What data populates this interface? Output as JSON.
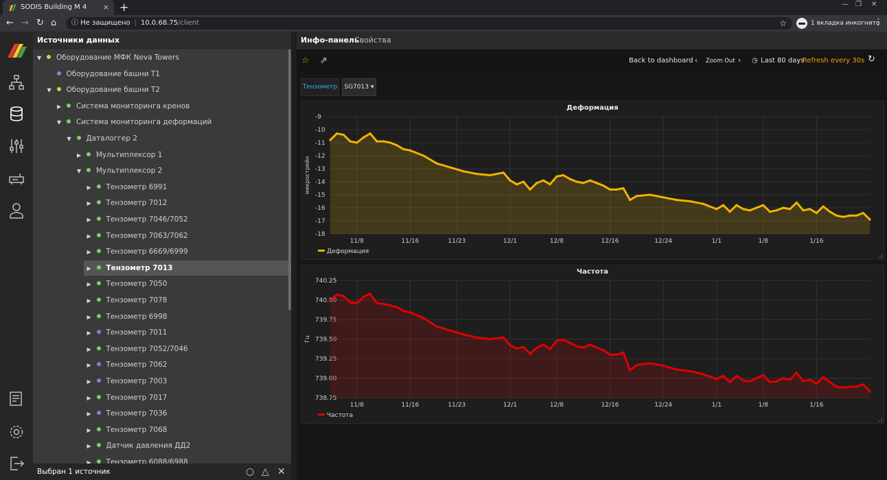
{
  "browser": {
    "tab_title": "SODIS Building M 4",
    "tab_close": "×",
    "new_tab": "+",
    "security_label": "Не защищено",
    "url_host": "10.0.68.75",
    "url_path": "/client",
    "incognito_label": "1 вкладка инкогнито"
  },
  "sources": {
    "header": "Источники данных",
    "footer": "Выбран 1 источник",
    "tree": [
      {
        "label": "Оборудование МФК Neva Towers",
        "depth": 0,
        "arrow": "▼",
        "dot": "#d6cf3a",
        "selected": false
      },
      {
        "label": "Оборудование башни T1",
        "depth": 1,
        "arrow": "",
        "dot": "#8c7fd8",
        "selected": false
      },
      {
        "label": "Оборудование башни T2",
        "depth": 1,
        "arrow": "▼",
        "dot": "#d6cf3a",
        "selected": false
      },
      {
        "label": "Система мониторинга кренов",
        "depth": 2,
        "arrow": "▶",
        "dot": "#7ccf6a",
        "selected": false
      },
      {
        "label": "Система мониторинга деформаций",
        "depth": 2,
        "arrow": "▼",
        "dot": "#7ccf6a",
        "selected": false
      },
      {
        "label": "Даталоггер 2",
        "depth": 3,
        "arrow": "▼",
        "dot": "#7ccf6a",
        "selected": false
      },
      {
        "label": "Мультиплексор 1",
        "depth": 4,
        "arrow": "▶",
        "dot": "#7ccf6a",
        "selected": false
      },
      {
        "label": "Мультиплексор 2",
        "depth": 4,
        "arrow": "▼",
        "dot": "#7ccf6a",
        "selected": false
      },
      {
        "label": "Тензометр 6991",
        "depth": 5,
        "arrow": "▶",
        "dot": "#7ccf6a",
        "selected": false
      },
      {
        "label": "Тензометр 7012",
        "depth": 5,
        "arrow": "▶",
        "dot": "#7ccf6a",
        "selected": false
      },
      {
        "label": "Тензометр 7046/7052",
        "depth": 5,
        "arrow": "▶",
        "dot": "#7ccf6a",
        "selected": false
      },
      {
        "label": "Тензометр 7063/7062",
        "depth": 5,
        "arrow": "▶",
        "dot": "#7ccf6a",
        "selected": false
      },
      {
        "label": "Тензометр 6669/6999",
        "depth": 5,
        "arrow": "▶",
        "dot": "#7ccf6a",
        "selected": false
      },
      {
        "label": "Тензометр 7013",
        "depth": 5,
        "arrow": "▶",
        "dot": "#7ccf6a",
        "selected": true
      },
      {
        "label": "Тензометр 7050",
        "depth": 5,
        "arrow": "▶",
        "dot": "#7ccf6a",
        "selected": false
      },
      {
        "label": "Тензометр 7078",
        "depth": 5,
        "arrow": "▶",
        "dot": "#7ccf6a",
        "selected": false
      },
      {
        "label": "Тензометр 6998",
        "depth": 5,
        "arrow": "▶",
        "dot": "#7ccf6a",
        "selected": false
      },
      {
        "label": "Тензометр 7011",
        "depth": 5,
        "arrow": "▶",
        "dot": "#8c7fd8",
        "selected": false
      },
      {
        "label": "Тензометр 7052/7046",
        "depth": 5,
        "arrow": "▶",
        "dot": "#7ccf6a",
        "selected": false
      },
      {
        "label": "Тензометр 7062",
        "depth": 5,
        "arrow": "▶",
        "dot": "#8c7fd8",
        "selected": false
      },
      {
        "label": "Тензометр 7003",
        "depth": 5,
        "arrow": "▶",
        "dot": "#8c7fd8",
        "selected": false
      },
      {
        "label": "Тензометр 7017",
        "depth": 5,
        "arrow": "▶",
        "dot": "#7ccf6a",
        "selected": false
      },
      {
        "label": "Тензометр 7036",
        "depth": 5,
        "arrow": "▶",
        "dot": "#8c7fd8",
        "selected": false
      },
      {
        "label": "Тензометр 7068",
        "depth": 5,
        "arrow": "▶",
        "dot": "#7ccf6a",
        "selected": false
      },
      {
        "label": "Датчик давления ДД2",
        "depth": 5,
        "arrow": "▶",
        "dot": "#7ccf6a",
        "selected": false
      },
      {
        "label": "Тензометр 6088/6988",
        "depth": 5,
        "arrow": "▶",
        "dot": "#7ccf6a",
        "selected": false
      }
    ]
  },
  "main": {
    "tabs": [
      "Инфо-панель",
      "Свойства"
    ],
    "back_label": "Back to dashboard",
    "zoom_label": "Zoom Out",
    "range_label": "Last 80 days",
    "refresh_label": "Refresh every 30s",
    "variable_name": "Тензометр",
    "variable_value": "SG7013 ▾"
  },
  "colors": {
    "deformation": "#f2b200",
    "frequency": "#e00000",
    "accent": "#f0a500"
  },
  "chart_data": [
    {
      "type": "line",
      "title": "Деформация",
      "ylabel": "микрострейн",
      "xlabel": "",
      "ylim": [
        -18,
        -9
      ],
      "yticks": [
        -9,
        -10,
        -11,
        -12,
        -13,
        -14,
        -15,
        -16,
        -17,
        -18
      ],
      "x_ticks": [
        "11/8",
        "11/16",
        "11/23",
        "12/1",
        "12/8",
        "12/16",
        "12/24",
        "1/1",
        "1/8",
        "1/16"
      ],
      "x_tick_days": [
        8,
        16,
        23,
        31,
        38,
        46,
        54,
        62,
        69,
        77
      ],
      "x_range_days": [
        4,
        85
      ],
      "grid": true,
      "legend_position": "bottom-left",
      "series": [
        {
          "name": "Деформация",
          "x_days": [
            4,
            5,
            6,
            7,
            8,
            9,
            10,
            11,
            12,
            13,
            14,
            15,
            16,
            18,
            20,
            22,
            24,
            26,
            28,
            30,
            31,
            32,
            33,
            34,
            35,
            36,
            37,
            38,
            39,
            40,
            41,
            42,
            43,
            44,
            45,
            46,
            47,
            48,
            49,
            50,
            52,
            54,
            56,
            58,
            60,
            62,
            63,
            64,
            65,
            66,
            67,
            68,
            69,
            70,
            71,
            72,
            73,
            74,
            75,
            76,
            77,
            78,
            79,
            80,
            81,
            82,
            83,
            84,
            85
          ],
          "values": [
            -10.8,
            -10.3,
            -10.4,
            -10.9,
            -11.0,
            -10.6,
            -10.3,
            -10.9,
            -10.9,
            -11.0,
            -11.2,
            -11.5,
            -11.6,
            -12.0,
            -12.6,
            -12.9,
            -13.2,
            -13.4,
            -13.5,
            -13.3,
            -13.9,
            -14.2,
            -14.0,
            -14.6,
            -14.1,
            -13.9,
            -14.2,
            -13.6,
            -13.5,
            -13.8,
            -14.0,
            -14.1,
            -13.9,
            -14.1,
            -14.3,
            -14.6,
            -14.6,
            -14.5,
            -15.4,
            -15.1,
            -15.0,
            -15.2,
            -15.4,
            -15.5,
            -15.7,
            -16.1,
            -15.8,
            -16.3,
            -15.8,
            -16.1,
            -16.2,
            -16.0,
            -15.8,
            -16.3,
            -16.2,
            -16.0,
            -16.1,
            -15.6,
            -16.2,
            -16.1,
            -16.4,
            -15.9,
            -16.3,
            -16.6,
            -16.7,
            -16.6,
            -16.6,
            -16.4,
            -16.9
          ]
        }
      ]
    },
    {
      "type": "line",
      "title": "Частота",
      "ylabel": "Гц",
      "xlabel": "",
      "ylim": [
        738.75,
        740.25
      ],
      "yticks": [
        "740.25",
        "740.00",
        "739.75",
        "739.50",
        "739.25",
        "739.00",
        "738.75"
      ],
      "x_ticks": [
        "11/8",
        "11/16",
        "11/23",
        "12/1",
        "12/8",
        "12/16",
        "12/24",
        "1/1",
        "1/8",
        "1/16"
      ],
      "x_tick_days": [
        8,
        16,
        23,
        31,
        38,
        46,
        54,
        62,
        69,
        77
      ],
      "x_range_days": [
        4,
        85
      ],
      "grid": true,
      "legend_position": "bottom-left",
      "series": [
        {
          "name": "Частота",
          "x_days": [
            4,
            5,
            6,
            7,
            8,
            9,
            10,
            11,
            12,
            13,
            14,
            15,
            16,
            18,
            20,
            22,
            24,
            26,
            28,
            30,
            31,
            32,
            33,
            34,
            35,
            36,
            37,
            38,
            39,
            40,
            41,
            42,
            43,
            44,
            45,
            46,
            47,
            48,
            49,
            50,
            52,
            54,
            56,
            58,
            60,
            62,
            63,
            64,
            65,
            66,
            67,
            68,
            69,
            70,
            71,
            72,
            73,
            74,
            75,
            76,
            77,
            78,
            79,
            80,
            81,
            82,
            83,
            84,
            85
          ],
          "values": [
            740.0,
            740.07,
            740.05,
            739.97,
            739.96,
            740.04,
            740.08,
            739.96,
            739.95,
            739.93,
            739.91,
            739.86,
            739.84,
            739.77,
            739.66,
            739.61,
            739.56,
            739.52,
            739.5,
            739.52,
            739.42,
            739.38,
            739.4,
            739.31,
            739.39,
            739.43,
            739.37,
            739.48,
            739.49,
            739.45,
            739.41,
            739.39,
            739.43,
            739.39,
            739.36,
            739.3,
            739.3,
            739.33,
            739.1,
            739.17,
            739.19,
            739.16,
            739.11,
            739.09,
            739.05,
            738.99,
            739.03,
            738.95,
            739.03,
            738.97,
            738.96,
            739.0,
            739.04,
            738.95,
            738.96,
            739.0,
            738.98,
            739.07,
            738.96,
            738.98,
            738.93,
            739.01,
            738.95,
            738.89,
            738.88,
            738.89,
            738.89,
            738.92,
            738.83
          ]
        }
      ]
    }
  ]
}
